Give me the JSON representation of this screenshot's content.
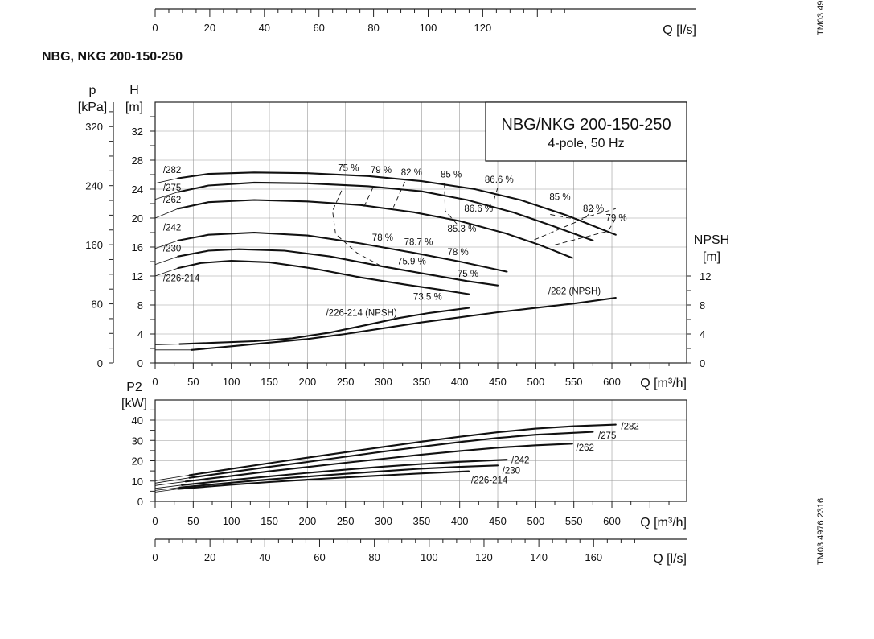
{
  "chart_id_top": "TM03 49",
  "chart_id_side": "TM03 4976 2316",
  "section_title": "NBG, NKG 200-150-250",
  "legend_box": {
    "line1": "NBG/NKG 200-150-250",
    "line2": "4-pole, 50 Hz"
  },
  "top_ls_axis": {
    "label": "Q [l/s]",
    "ticks": [
      0,
      20,
      40,
      60,
      80,
      100,
      120
    ]
  },
  "bottom_ls_axis": {
    "label": "Q [l/s]",
    "ticks": [
      0,
      20,
      40,
      60,
      80,
      100,
      120,
      140,
      160
    ]
  },
  "chart_data": [
    {
      "type": "line",
      "name_hint": "head-npsh",
      "x_label": "Q [m³/h]",
      "x_ticks": [
        0,
        50,
        100,
        150,
        200,
        250,
        300,
        350,
        400,
        450,
        500,
        550,
        600
      ],
      "xlim": [
        0,
        700
      ],
      "y_left_label": {
        "unit": "H",
        "sub": "[m]"
      },
      "y_pressure_label": {
        "unit": "p",
        "sub": "[kPa]"
      },
      "y_right_label": {
        "unit": "NPSH",
        "sub": "[m]"
      },
      "y_left_ticks": [
        0,
        4,
        8,
        12,
        16,
        20,
        24,
        28,
        32
      ],
      "y_pressure_ticks": [
        0,
        80,
        160,
        240,
        320
      ],
      "y_right_ticks": [
        0,
        4,
        8,
        12
      ],
      "ylim": [
        0,
        36
      ],
      "head_curves": [
        {
          "label": "/282",
          "label_xy": [
            2,
            26.2
          ],
          "thin": [
            [
              0,
              24.8
            ],
            [
              30,
              25.5
            ]
          ],
          "points": [
            [
              30,
              25.5
            ],
            [
              70,
              26.1
            ],
            [
              130,
              26.3
            ],
            [
              200,
              26.2
            ],
            [
              280,
              25.8
            ],
            [
              350,
              25.1
            ],
            [
              420,
              24.0
            ],
            [
              480,
              22.5
            ],
            [
              540,
              20.4
            ],
            [
              605,
              17.7
            ]
          ]
        },
        {
          "label": "/275",
          "label_xy": [
            2,
            23.8
          ],
          "thin": [
            [
              0,
              22.6
            ],
            [
              30,
              23.6
            ]
          ],
          "points": [
            [
              30,
              23.6
            ],
            [
              70,
              24.5
            ],
            [
              130,
              24.9
            ],
            [
              200,
              24.8
            ],
            [
              280,
              24.4
            ],
            [
              350,
              23.7
            ],
            [
              410,
              22.5
            ],
            [
              470,
              20.8
            ],
            [
              520,
              19.0
            ],
            [
              575,
              16.9
            ]
          ]
        },
        {
          "label": "/262",
          "label_xy": [
            2,
            22.1
          ],
          "thin": [
            [
              0,
              20.0
            ],
            [
              30,
              21.3
            ]
          ],
          "points": [
            [
              30,
              21.3
            ],
            [
              70,
              22.2
            ],
            [
              130,
              22.5
            ],
            [
              200,
              22.3
            ],
            [
              270,
              21.8
            ],
            [
              340,
              20.8
            ],
            [
              400,
              19.6
            ],
            [
              460,
              17.9
            ],
            [
              505,
              16.3
            ],
            [
              548,
              14.5
            ]
          ]
        },
        {
          "label": "/242",
          "label_xy": [
            2,
            18.3
          ],
          "thin": [
            [
              0,
              15.8
            ],
            [
              30,
              16.9
            ]
          ],
          "points": [
            [
              30,
              16.9
            ],
            [
              70,
              17.7
            ],
            [
              130,
              18.0
            ],
            [
              200,
              17.6
            ],
            [
              270,
              16.5
            ],
            [
              340,
              15.2
            ],
            [
              400,
              14.0
            ],
            [
              462,
              12.6
            ]
          ]
        },
        {
          "label": "/230",
          "label_xy": [
            2,
            15.4
          ],
          "thin": [
            [
              0,
              13.6
            ],
            [
              30,
              14.7
            ]
          ],
          "points": [
            [
              30,
              14.7
            ],
            [
              70,
              15.5
            ],
            [
              110,
              15.7
            ],
            [
              170,
              15.5
            ],
            [
              230,
              14.7
            ],
            [
              300,
              13.3
            ],
            [
              360,
              12.2
            ],
            [
              410,
              11.3
            ],
            [
              450,
              10.7
            ]
          ]
        },
        {
          "label": "/226-214",
          "label_xy": [
            2,
            11.3
          ],
          "thin": [
            [
              0,
              12.0
            ],
            [
              30,
              13.1
            ]
          ],
          "points": [
            [
              30,
              13.1
            ],
            [
              60,
              13.8
            ],
            [
              100,
              14.1
            ],
            [
              150,
              13.9
            ],
            [
              210,
              13.0
            ],
            [
              270,
              11.8
            ],
            [
              330,
              10.8
            ],
            [
              375,
              10.1
            ],
            [
              412,
              9.5
            ]
          ]
        }
      ],
      "npsh_curves": [
        {
          "label": "/282 (NPSH)",
          "label_xy": [
            508,
            9.5
          ],
          "thin": [
            [
              0,
              1.8
            ],
            [
              48,
              1.8
            ]
          ],
          "points": [
            [
              48,
              1.8
            ],
            [
              100,
              2.3
            ],
            [
              150,
              2.8
            ],
            [
              200,
              3.3
            ],
            [
              250,
              4.0
            ],
            [
              300,
              4.8
            ],
            [
              350,
              5.6
            ],
            [
              400,
              6.3
            ],
            [
              450,
              7.0
            ],
            [
              500,
              7.6
            ],
            [
              550,
              8.2
            ],
            [
              605,
              9.0
            ]
          ]
        },
        {
          "label": "/226-214 (NPSH)",
          "label_xy": [
            216,
            6.5
          ],
          "thin": [
            [
              0,
              2.5
            ],
            [
              32,
              2.6
            ]
          ],
          "points": [
            [
              32,
              2.6
            ],
            [
              80,
              2.8
            ],
            [
              130,
              3.0
            ],
            [
              180,
              3.4
            ],
            [
              230,
              4.2
            ],
            [
              280,
              5.3
            ],
            [
              320,
              6.2
            ],
            [
              360,
              6.9
            ],
            [
              412,
              7.6
            ]
          ]
        }
      ],
      "efficiency_lines": [
        {
          "points": [
            [
              245,
              23.8
            ],
            [
              233,
              21.0
            ],
            [
              237,
              17.8
            ],
            [
              265,
              15.2
            ],
            [
              300,
              13.2
            ]
          ]
        },
        {
          "points": [
            [
              286,
              24.2
            ],
            [
              274,
              21.5
            ]
          ]
        },
        {
          "points": [
            [
              328,
              25.0
            ],
            [
              313,
              21.5
            ]
          ]
        },
        {
          "points": [
            [
              380,
              24.8
            ],
            [
              381,
              21.0
            ],
            [
              398,
              19.0
            ]
          ]
        },
        {
          "points": [
            [
              450,
              24.2
            ],
            [
              445,
              22.5
            ]
          ]
        },
        {
          "points": [
            [
              519,
              20.5
            ],
            [
              555,
              19.8
            ],
            [
              605,
              21.3
            ]
          ]
        },
        {
          "points": [
            [
              498,
              17.0
            ],
            [
              565,
              20.0
            ],
            [
              580,
              21.8
            ]
          ]
        },
        {
          "points": [
            [
              525,
              16.3
            ],
            [
              595,
              18.2
            ],
            [
              603,
              19.6
            ]
          ]
        }
      ],
      "efficiency_labels": [
        {
          "text": "75 %",
          "xy": [
            240,
            26.5
          ]
        },
        {
          "text": "79 %",
          "xy": [
            283,
            26.2
          ]
        },
        {
          "text": "82 %",
          "xy": [
            323,
            25.9
          ]
        },
        {
          "text": "85 %",
          "xy": [
            375,
            25.6
          ]
        },
        {
          "text": "86.6 %",
          "xy": [
            433,
            24.9
          ]
        },
        {
          "text": "85 %",
          "xy": [
            518,
            22.5
          ]
        },
        {
          "text": "82 %",
          "xy": [
            562,
            20.9
          ]
        },
        {
          "text": "79 %",
          "xy": [
            592,
            19.6
          ]
        },
        {
          "text": "86.6 %",
          "xy": [
            406,
            20.9
          ]
        },
        {
          "text": "85.3 %",
          "xy": [
            384,
            18.1
          ]
        },
        {
          "text": "78 %",
          "xy": [
            285,
            16.9
          ]
        },
        {
          "text": "78.7 %",
          "xy": [
            327,
            16.3
          ]
        },
        {
          "text": "78 %",
          "xy": [
            384,
            14.9
          ]
        },
        {
          "text": "75.9 %",
          "xy": [
            318,
            13.6
          ]
        },
        {
          "text": "75 %",
          "xy": [
            397,
            11.9
          ]
        },
        {
          "text": "73.5 %",
          "xy": [
            339,
            8.7
          ]
        }
      ]
    },
    {
      "type": "line",
      "name_hint": "power",
      "x_label": "Q [m³/h]",
      "x_ticks": [
        0,
        50,
        100,
        150,
        200,
        250,
        300,
        350,
        400,
        450,
        500,
        550,
        600
      ],
      "xlim": [
        0,
        700
      ],
      "y_label": {
        "unit": "P2",
        "sub": "[kW]"
      },
      "y_ticks": [
        0,
        10,
        20,
        30,
        40
      ],
      "ylim": [
        0,
        50
      ],
      "power_curves": [
        {
          "label": "/282",
          "label_xy": [
            612,
            37.0
          ],
          "thin": [
            [
              0,
              10.2
            ],
            [
              45,
              12.9
            ]
          ],
          "points": [
            [
              45,
              12.9
            ],
            [
              100,
              16.0
            ],
            [
              150,
              18.8
            ],
            [
              200,
              21.5
            ],
            [
              250,
              24.2
            ],
            [
              300,
              26.8
            ],
            [
              350,
              29.4
            ],
            [
              400,
              31.8
            ],
            [
              450,
              34.0
            ],
            [
              500,
              35.8
            ],
            [
              550,
              37.0
            ],
            [
              605,
              37.8
            ]
          ]
        },
        {
          "label": "/275",
          "label_xy": [
            582,
            32.5
          ],
          "thin": [
            [
              0,
              9.0
            ],
            [
              45,
              11.6
            ]
          ],
          "points": [
            [
              45,
              11.6
            ],
            [
              100,
              14.4
            ],
            [
              150,
              17.0
            ],
            [
              200,
              19.4
            ],
            [
              250,
              22.0
            ],
            [
              300,
              24.5
            ],
            [
              350,
              26.9
            ],
            [
              400,
              29.2
            ],
            [
              450,
              31.2
            ],
            [
              500,
              32.8
            ],
            [
              575,
              34.2
            ]
          ]
        },
        {
          "label": "/262",
          "label_xy": [
            553,
            26.5
          ],
          "thin": [
            [
              0,
              7.8
            ],
            [
              40,
              9.8
            ]
          ],
          "points": [
            [
              40,
              9.8
            ],
            [
              100,
              12.5
            ],
            [
              150,
              14.8
            ],
            [
              200,
              16.9
            ],
            [
              250,
              19.0
            ],
            [
              300,
              21.0
            ],
            [
              350,
              23.0
            ],
            [
              400,
              24.8
            ],
            [
              450,
              26.4
            ],
            [
              500,
              27.6
            ],
            [
              548,
              28.4
            ]
          ]
        },
        {
          "label": "/242",
          "label_xy": [
            468,
            20.3
          ],
          "thin": [
            [
              0,
              6.4
            ],
            [
              35,
              8.0
            ]
          ],
          "points": [
            [
              35,
              8.0
            ],
            [
              100,
              10.5
            ],
            [
              150,
              12.3
            ],
            [
              200,
              14.0
            ],
            [
              250,
              15.6
            ],
            [
              300,
              17.1
            ],
            [
              350,
              18.4
            ],
            [
              400,
              19.5
            ],
            [
              462,
              20.5
            ]
          ]
        },
        {
          "label": "/230",
          "label_xy": [
            456,
            15.2
          ],
          "thin": [
            [
              0,
              5.4
            ],
            [
              32,
              6.8
            ]
          ],
          "points": [
            [
              32,
              6.8
            ],
            [
              100,
              9.2
            ],
            [
              150,
              10.8
            ],
            [
              200,
              12.2
            ],
            [
              250,
              13.6
            ],
            [
              300,
              14.9
            ],
            [
              350,
              16.1
            ],
            [
              400,
              17.0
            ],
            [
              450,
              17.7
            ]
          ]
        },
        {
          "label": "/226-214",
          "label_xy": [
            415,
            10.4
          ],
          "thin": [
            [
              0,
              4.6
            ],
            [
              30,
              6.1
            ]
          ],
          "points": [
            [
              30,
              6.1
            ],
            [
              100,
              8.2
            ],
            [
              150,
              9.5
            ],
            [
              200,
              10.7
            ],
            [
              250,
              11.8
            ],
            [
              300,
              12.8
            ],
            [
              350,
              13.8
            ],
            [
              412,
              14.8
            ]
          ]
        }
      ]
    }
  ]
}
